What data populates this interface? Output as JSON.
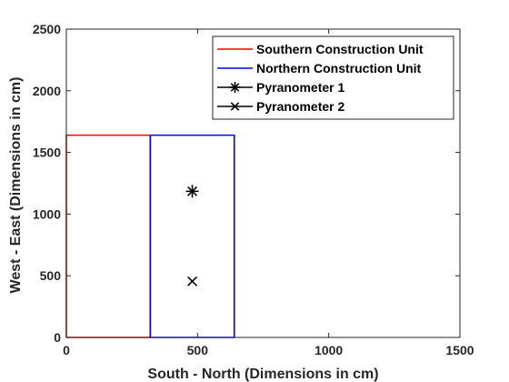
{
  "chart_data": {
    "type": "line",
    "xlabel": "South - North (Dimensions in cm)",
    "ylabel": "West - East (Dimensions in cm)",
    "xlim": [
      0,
      1500
    ],
    "ylim": [
      0,
      2500
    ],
    "xticks": [
      0,
      500,
      1000,
      1500
    ],
    "yticks": [
      0,
      500,
      1000,
      1500,
      2000,
      2500
    ],
    "legend_position": "top-right",
    "grid": false,
    "series": [
      {
        "name": "Southern Construction Unit",
        "color": "#ff0000",
        "marker": "none",
        "x": [
          0,
          320,
          320,
          0,
          0
        ],
        "y": [
          0,
          0,
          1640,
          1640,
          0
        ]
      },
      {
        "name": "Northern Construction Unit",
        "color": "#0000ff",
        "marker": "none",
        "x": [
          320,
          640,
          640,
          320,
          320
        ],
        "y": [
          0,
          0,
          1640,
          1640,
          0
        ]
      },
      {
        "name": "Pyranometer 1",
        "color": "#000000",
        "marker": "asterisk",
        "x": [
          480
        ],
        "y": [
          1185
        ]
      },
      {
        "name": "Pyranometer 2",
        "color": "#000000",
        "marker": "x",
        "x": [
          480
        ],
        "y": [
          455
        ]
      }
    ]
  }
}
